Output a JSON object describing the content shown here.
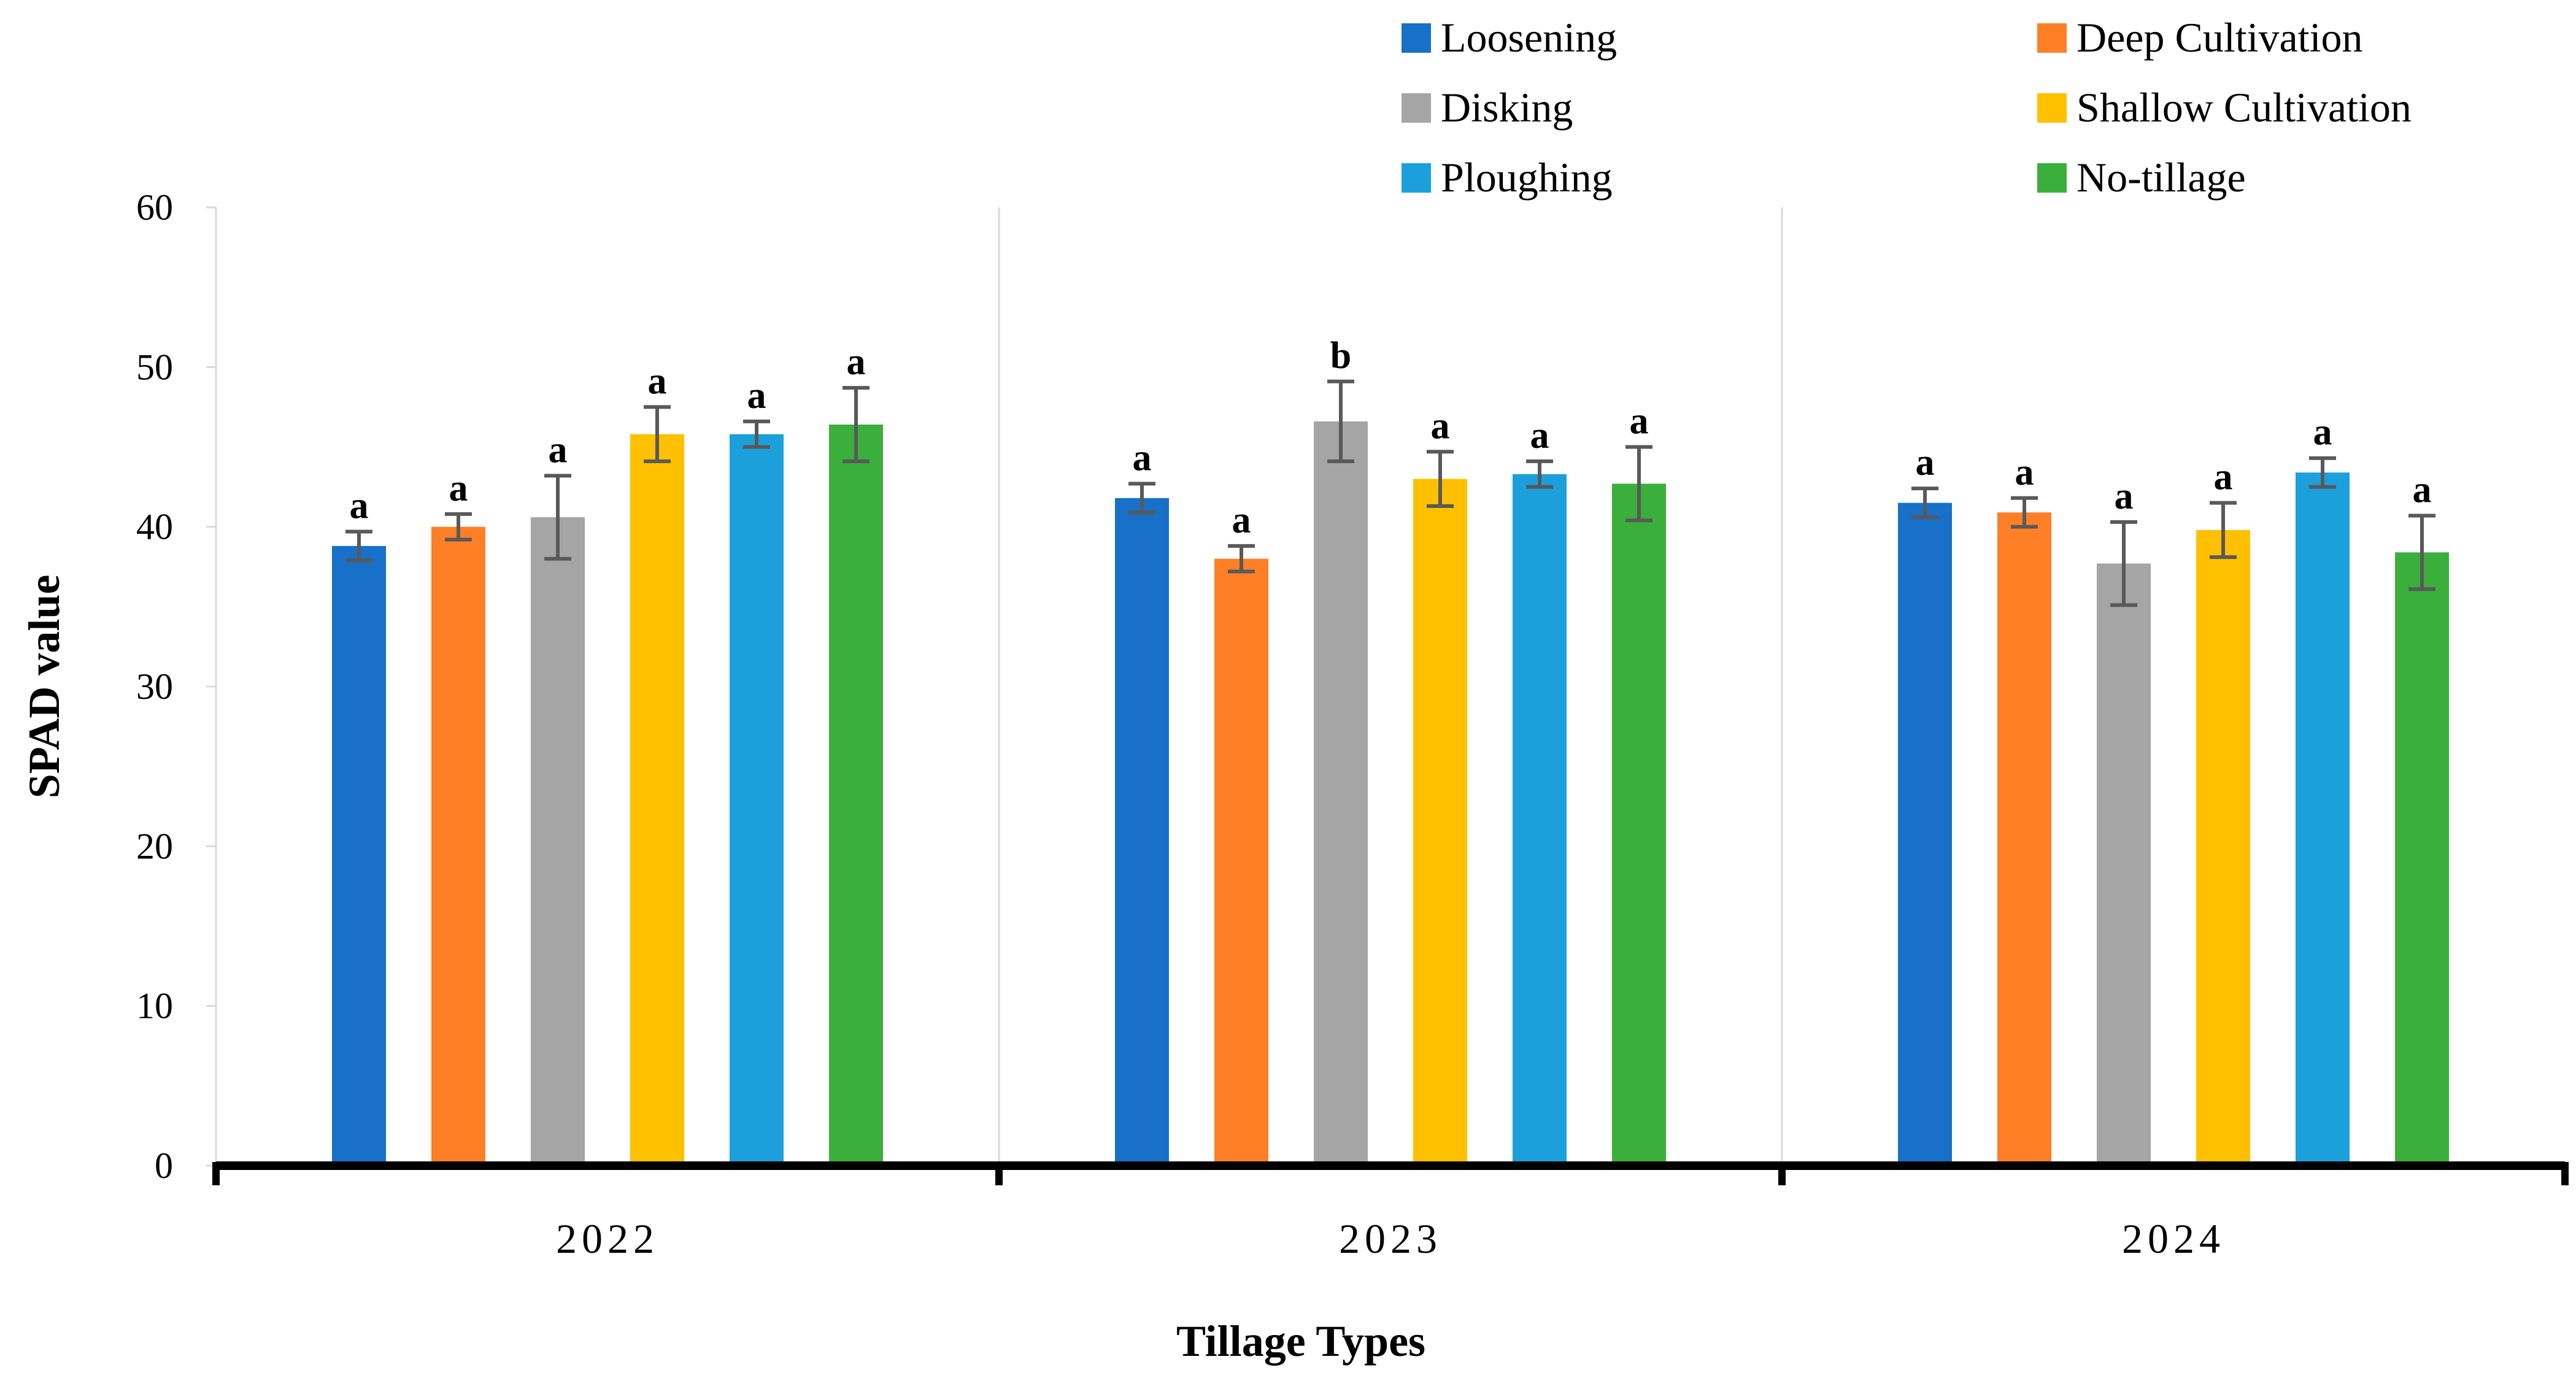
{
  "chart_data": {
    "type": "bar",
    "title": "",
    "xlabel": "Tillage Types",
    "ylabel": "SPAD value",
    "ylim": [
      0,
      60
    ],
    "yticks": [
      0,
      10,
      20,
      30,
      40,
      50,
      60
    ],
    "categories": [
      "2022",
      "2023",
      "2024"
    ],
    "legend_position": "top-right",
    "series": [
      {
        "name": "Loosening",
        "color": "#1870C8",
        "values": [
          38.8,
          41.8,
          41.5
        ],
        "errors": [
          0.9,
          0.9,
          0.9
        ],
        "letters": [
          "a",
          "a",
          "a"
        ]
      },
      {
        "name": "Deep Cultivation",
        "color": "#FF7F27",
        "values": [
          40.0,
          38.0,
          40.9
        ],
        "errors": [
          0.8,
          0.8,
          0.9
        ],
        "letters": [
          "a",
          "a",
          "a"
        ]
      },
      {
        "name": "Disking",
        "color": "#A5A5A5",
        "values": [
          40.6,
          46.6,
          37.7
        ],
        "errors": [
          2.6,
          2.5,
          2.6
        ],
        "letters": [
          "a",
          "b",
          "a"
        ]
      },
      {
        "name": "Shallow Cultivation",
        "color": "#FFC000",
        "values": [
          45.8,
          43.0,
          39.8
        ],
        "errors": [
          1.7,
          1.7,
          1.7
        ],
        "letters": [
          "a",
          "a",
          "a"
        ]
      },
      {
        "name": "Ploughing",
        "color": "#1CA0DC",
        "values": [
          45.8,
          43.3,
          43.4
        ],
        "errors": [
          0.8,
          0.8,
          0.9
        ],
        "letters": [
          "a",
          "a",
          "a"
        ]
      },
      {
        "name": "No-tillage",
        "color": "#3BAF3B",
        "values": [
          46.4,
          42.7,
          38.4
        ],
        "errors": [
          2.3,
          2.3,
          2.3
        ],
        "letters": [
          "a",
          "a",
          "a"
        ]
      }
    ]
  }
}
